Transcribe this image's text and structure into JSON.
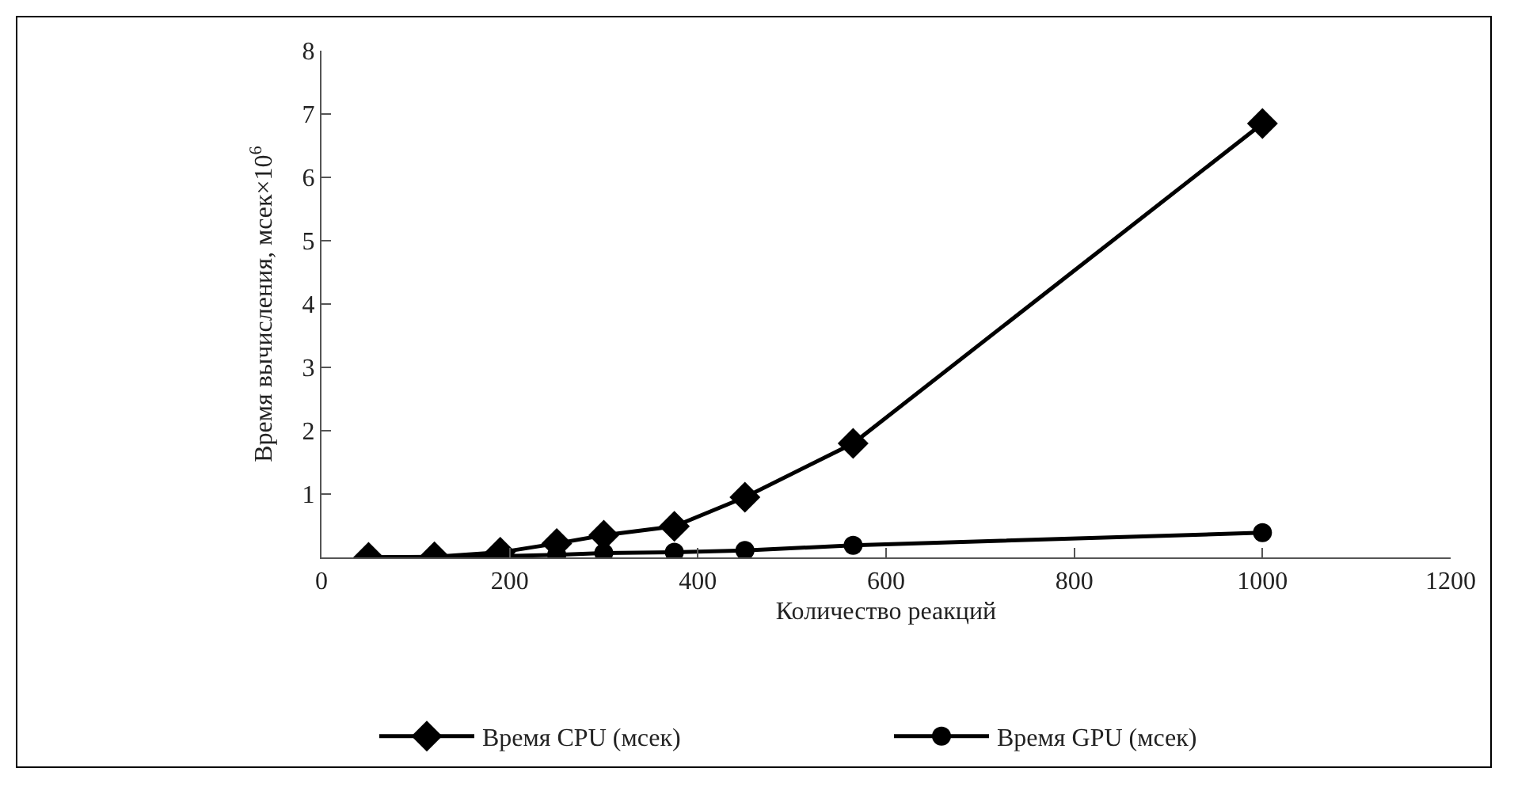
{
  "chart_data": {
    "type": "line",
    "xlabel": "Количество реакций",
    "ylabel": "Время вычисления, мсек×10$^{6}$",
    "x": [
      50,
      120,
      190,
      250,
      300,
      375,
      450,
      565,
      1000
    ],
    "series": [
      {
        "name": "Время CPU (мсек)",
        "color": "#000000",
        "marker": "diamond",
        "values": [
          0,
          0.01,
          0.08,
          0.22,
          0.35,
          0.49,
          0.95,
          1.8,
          6.85
        ]
      },
      {
        "name": "Время GPU (мсек)",
        "color": "#000000",
        "marker": "circle",
        "values": [
          0,
          0.01,
          0.02,
          0.04,
          0.07,
          0.08,
          0.11,
          0.19,
          0.39
        ]
      }
    ],
    "xlim": [
      0,
      1200
    ],
    "xticks": [
      0,
      200,
      400,
      600,
      800,
      1000,
      1200
    ],
    "ylim": [
      0,
      8
    ],
    "yticks": [
      {
        "value": 0,
        "label": null
      },
      1,
      2,
      3,
      4,
      5,
      6,
      7,
      8
    ],
    "grid": false,
    "legend": "bottom",
    "line_style": "solid"
  }
}
